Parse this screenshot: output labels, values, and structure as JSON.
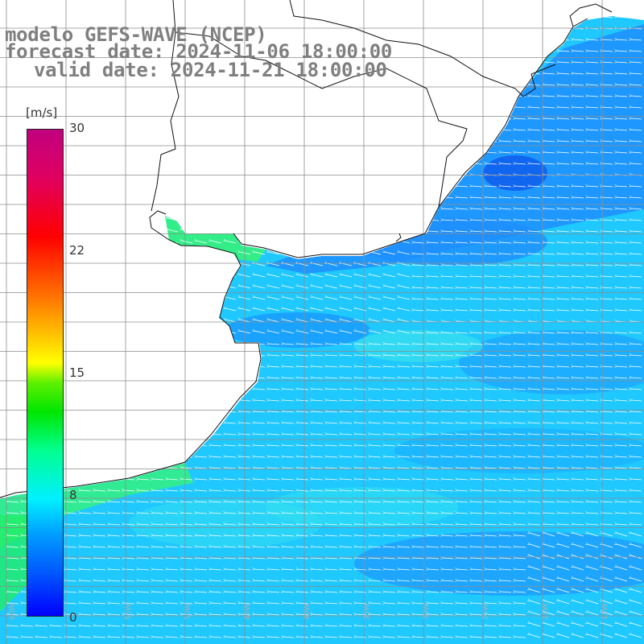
{
  "header": {
    "model": "modelo GEFS-WAVE (NCEP)",
    "forecast": "forecast date: 2024-11-06 18:00:00",
    "valid": "valid date: 2024-11-21 18:00:00"
  },
  "colorbar": {
    "unit": "[m/s]",
    "ticks": [
      "30",
      "22",
      "15",
      "8",
      "0"
    ],
    "colors": [
      "#0000ff",
      "#00a0ff",
      "#00f0ff",
      "#00ff90",
      "#00e600",
      "#ffff00",
      "#ff7000",
      "#ff0000",
      "#c0007f"
    ]
  },
  "colors": {
    "sea_deep": "#1e8fff",
    "sea_mid": "#1fc8ff",
    "sea_light": "#3fe0f0",
    "coast_green": "#33ee88",
    "land": "#ffffff",
    "coastline": "#111111",
    "grid": "#8c8c8c",
    "title": "#7f7f7f",
    "arrow": "#ffffff"
  },
  "wind": {
    "direction": "from east",
    "arrow_color": "white"
  }
}
